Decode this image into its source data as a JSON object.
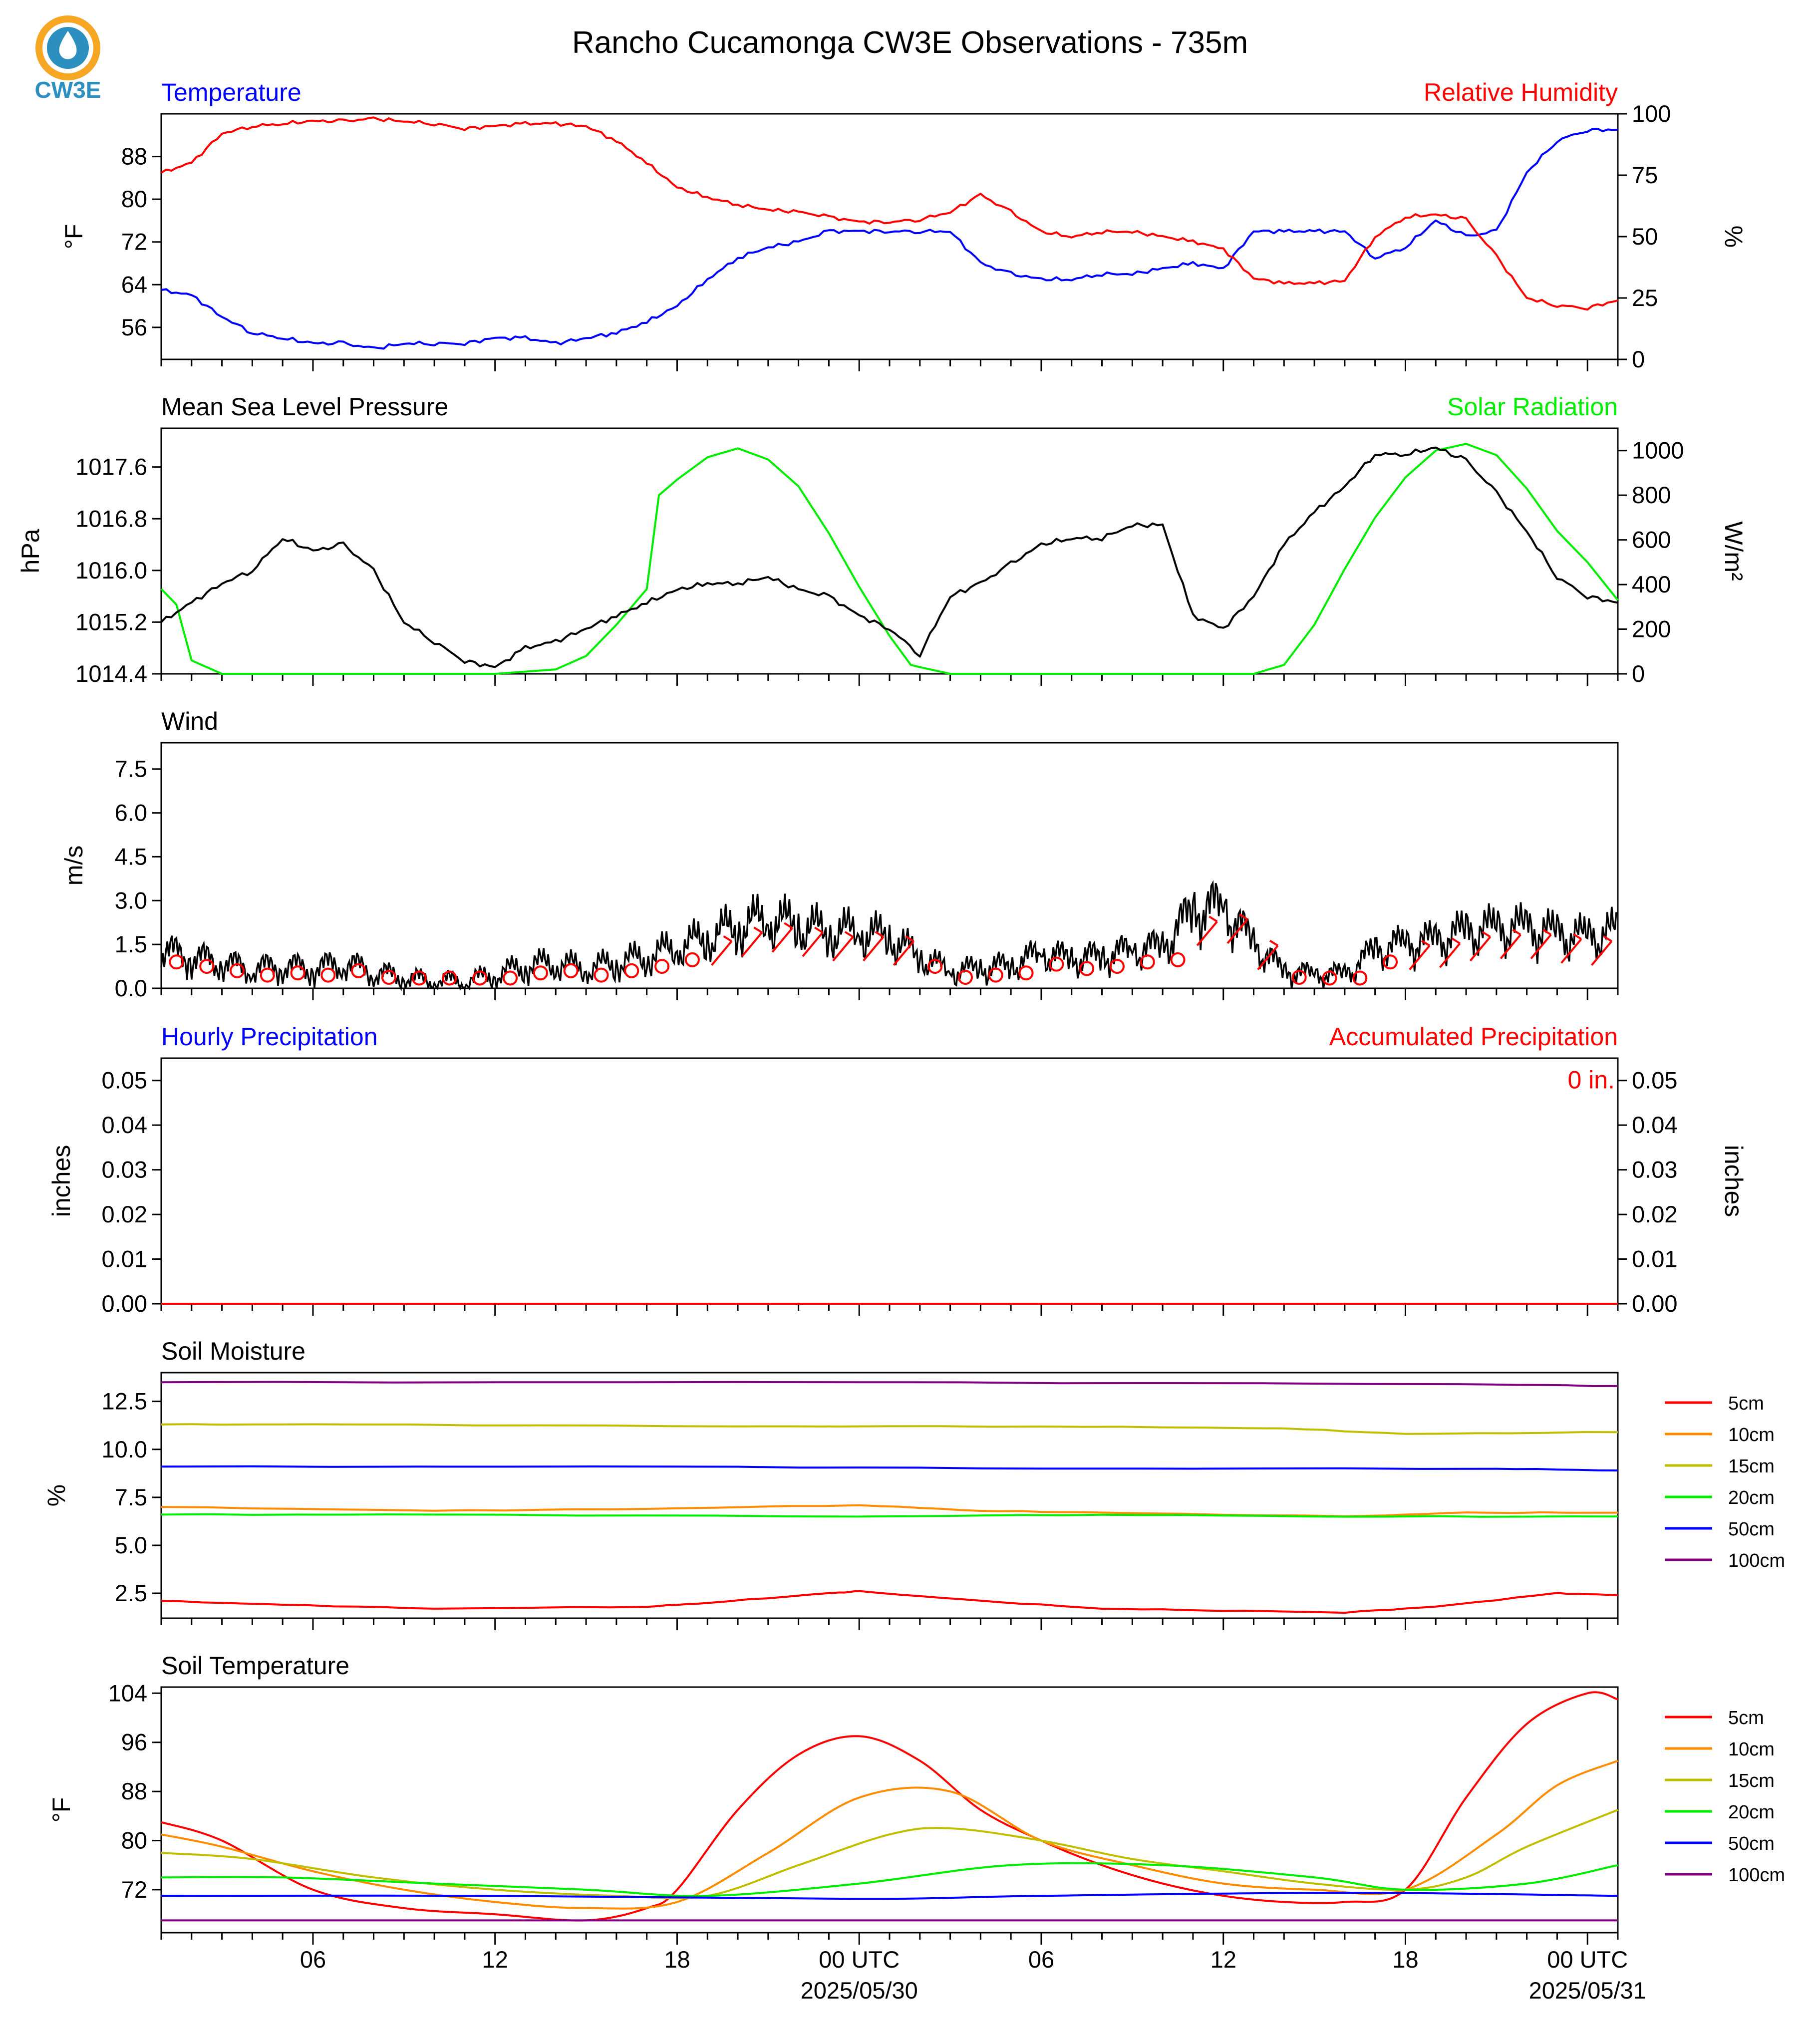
{
  "title": "Rancho Cucamonga CW3E Observations - 735m",
  "logo": {
    "text": "CW3E",
    "colors": {
      "ring": "#f5a623",
      "drop": "#2c8fbf",
      "text": "#2c8fbf"
    }
  },
  "time_axis": {
    "ticks": [
      {
        "t": 6,
        "label": "06"
      },
      {
        "t": 12,
        "label": "12"
      },
      {
        "t": 18,
        "label": "18"
      },
      {
        "t": 24,
        "label": "00 UTC",
        "date": "2025/05/30"
      },
      {
        "t": 30,
        "label": "06"
      },
      {
        "t": 36,
        "label": "12"
      },
      {
        "t": 42,
        "label": "18"
      },
      {
        "t": 48,
        "label": "00 UTC",
        "date": "2025/05/31"
      }
    ],
    "range_hours": [
      1,
      49
    ]
  },
  "panels": {
    "temp_rh": {
      "left_title": "Temperature",
      "right_title": "Relative Humidity",
      "left_ylabel": "°F",
      "right_ylabel": "%",
      "left_ticks": [
        "56",
        "64",
        "72",
        "80",
        "88"
      ],
      "right_ticks": [
        "0",
        "25",
        "50",
        "75",
        "100"
      ],
      "colors": {
        "left": "#0000ff",
        "right": "#ff0000"
      }
    },
    "pressure_solar": {
      "left_title": "Mean Sea Level Pressure",
      "right_title": "Solar Radiation",
      "left_ylabel": "hPa",
      "right_ylabel": "W/m²",
      "left_ticks": [
        "1014.4",
        "1015.2",
        "1016.0",
        "1016.8",
        "1017.6"
      ],
      "right_ticks": [
        "0",
        "200",
        "400",
        "600",
        "800",
        "1000"
      ],
      "colors": {
        "left": "#000000",
        "right": "#00ee00"
      }
    },
    "wind": {
      "left_title": "Wind",
      "left_ylabel": "m/s",
      "left_ticks": [
        "0.0",
        "1.5",
        "3.0",
        "4.5",
        "6.0",
        "7.5"
      ],
      "colors": {
        "speed": "#000000",
        "barbs": "#ff0000"
      }
    },
    "precip": {
      "left_title": "Hourly Precipitation",
      "right_title": "Accumulated Precipitation",
      "left_ylabel": "inches",
      "right_ylabel": "inches",
      "left_ticks": [
        "0.00",
        "0.01",
        "0.02",
        "0.03",
        "0.04",
        "0.05"
      ],
      "right_ticks": [
        "0.00",
        "0.01",
        "0.02",
        "0.03",
        "0.04",
        "0.05"
      ],
      "accum_label": "0 in.",
      "colors": {
        "left": "#0000ff",
        "right": "#ff0000"
      }
    },
    "soil_moisture": {
      "left_title": "Soil Moisture",
      "left_ylabel": "%",
      "left_ticks": [
        "2.5",
        "5.0",
        "7.5",
        "10.0",
        "12.5"
      ]
    },
    "soil_temp": {
      "left_title": "Soil Temperature",
      "left_ylabel": "°F",
      "left_ticks": [
        "72",
        "80",
        "88",
        "96",
        "104"
      ]
    }
  },
  "legend_depths": [
    {
      "label": "5cm",
      "color": "#ff0000"
    },
    {
      "label": "10cm",
      "color": "#ff8c00"
    },
    {
      "label": "15cm",
      "color": "#bfbf00"
    },
    {
      "label": "20cm",
      "color": "#00ee00"
    },
    {
      "label": "50cm",
      "color": "#0000ff"
    },
    {
      "label": "100cm",
      "color": "#800080"
    }
  ],
  "chart_data": [
    {
      "type": "line",
      "title": "Temperature / Relative Humidity",
      "x_unit": "hours since 2025/05/29 00 UTC",
      "series": [
        {
          "name": "Temperature",
          "unit": "°F",
          "axis": "left",
          "ylim": [
            50,
            96
          ],
          "x": [
            1,
            2,
            3,
            4,
            5,
            6,
            7,
            8,
            9,
            10,
            11,
            12,
            13,
            14,
            15,
            16,
            17,
            18,
            19,
            20,
            21,
            22,
            23,
            24,
            25,
            26,
            27,
            28,
            29,
            30,
            31,
            32,
            33,
            34,
            35,
            36,
            37,
            38,
            39,
            40,
            41,
            42,
            43,
            44,
            45,
            46,
            47,
            48,
            49
          ],
          "y": [
            63,
            62,
            58,
            55,
            54,
            53,
            53,
            52,
            53,
            53,
            53,
            54,
            54,
            53,
            54,
            55,
            57,
            60,
            65,
            69,
            71,
            72,
            74,
            74,
            74,
            74,
            74,
            68,
            66,
            65,
            65,
            66,
            66,
            67,
            68,
            67,
            74,
            74,
            74,
            74,
            69,
            71,
            76,
            73,
            74,
            85,
            91,
            93,
            93
          ]
        },
        {
          "name": "Relative Humidity",
          "unit": "%",
          "axis": "right",
          "ylim": [
            0,
            100
          ],
          "x": [
            1,
            2,
            3,
            4,
            5,
            6,
            7,
            8,
            9,
            10,
            11,
            12,
            13,
            14,
            15,
            16,
            17,
            18,
            19,
            20,
            21,
            22,
            23,
            24,
            25,
            26,
            27,
            28,
            29,
            30,
            31,
            32,
            33,
            34,
            35,
            36,
            37,
            38,
            39,
            40,
            41,
            42,
            43,
            44,
            45,
            46,
            47,
            48,
            49
          ],
          "y": [
            76,
            80,
            92,
            95,
            96,
            97,
            97,
            98,
            97,
            96,
            94,
            95,
            96,
            96,
            95,
            89,
            80,
            70,
            66,
            63,
            61,
            60,
            58,
            56,
            56,
            57,
            60,
            67,
            60,
            52,
            50,
            52,
            52,
            50,
            48,
            45,
            33,
            31,
            31,
            32,
            50,
            58,
            59,
            57,
            42,
            25,
            22,
            21,
            24
          ]
        }
      ]
    },
    {
      "type": "line",
      "title": "Mean Sea Level Pressure / Solar Radiation",
      "series": [
        {
          "name": "Mean Sea Level Pressure",
          "unit": "hPa",
          "axis": "left",
          "ylim": [
            1014.4,
            1018.2
          ],
          "x": [
            1,
            2,
            3,
            4,
            5,
            6,
            7,
            8,
            9,
            10,
            11,
            12,
            13,
            14,
            15,
            16,
            17,
            18,
            19,
            20,
            21,
            22,
            23,
            24,
            25,
            26,
            27,
            28,
            29,
            30,
            31,
            32,
            33,
            34,
            35,
            36,
            37,
            38,
            39,
            40,
            41,
            42,
            43,
            44,
            45,
            46,
            47,
            48,
            49
          ],
          "y": [
            1015.2,
            1015.5,
            1015.8,
            1016.0,
            1016.5,
            1016.3,
            1016.4,
            1016.0,
            1015.2,
            1014.9,
            1014.6,
            1014.5,
            1014.8,
            1014.9,
            1015.1,
            1015.3,
            1015.5,
            1015.7,
            1015.8,
            1015.8,
            1015.9,
            1015.7,
            1015.6,
            1015.3,
            1015.1,
            1014.7,
            1015.6,
            1015.8,
            1016.1,
            1016.4,
            1016.5,
            1016.5,
            1016.7,
            1016.7,
            1015.3,
            1015.1,
            1015.6,
            1016.4,
            1016.9,
            1017.3,
            1017.8,
            1017.8,
            1017.9,
            1017.7,
            1017.2,
            1016.6,
            1015.9,
            1015.6,
            1015.5
          ]
        },
        {
          "name": "Solar Radiation",
          "unit": "W/m²",
          "axis": "right",
          "ylim": [
            0,
            1100
          ],
          "x": [
            1,
            1.5,
            2,
            3,
            12,
            14,
            15,
            16,
            17,
            17.4,
            18,
            19,
            20,
            21,
            22,
            23,
            24,
            25,
            25.7,
            26,
            27,
            37,
            38,
            39,
            40,
            41,
            42,
            43,
            44,
            45,
            46,
            47,
            48,
            49
          ],
          "y": [
            380,
            310,
            60,
            0,
            0,
            20,
            80,
            220,
            380,
            800,
            870,
            970,
            1010,
            960,
            840,
            630,
            390,
            170,
            40,
            30,
            0,
            0,
            40,
            220,
            470,
            700,
            880,
            1000,
            1030,
            980,
            830,
            640,
            500,
            330
          ]
        }
      ]
    },
    {
      "type": "line",
      "title": "Wind",
      "series": [
        {
          "name": "Wind speed",
          "unit": "m/s",
          "ylim": [
            0,
            8.4
          ],
          "x": [
            1,
            2,
            3,
            4,
            5,
            6,
            7,
            8,
            9,
            10,
            11,
            12,
            13,
            14,
            15,
            16,
            17,
            18,
            19,
            20,
            21,
            22,
            23,
            24,
            25,
            26,
            27,
            28,
            29,
            30,
            31,
            32,
            33,
            34,
            35,
            36,
            37,
            38,
            39,
            40,
            41,
            42,
            43,
            44,
            45,
            46,
            47,
            48,
            49
          ],
          "y": [
            1.2,
            1.0,
            0.8,
            0.6,
            0.7,
            0.6,
            0.8,
            0.5,
            0.3,
            0.2,
            0.2,
            0.4,
            0.7,
            0.8,
            0.6,
            0.8,
            1.0,
            1.3,
            1.6,
            2.0,
            2.2,
            2.0,
            1.8,
            1.8,
            1.6,
            1.0,
            0.5,
            0.6,
            0.7,
            1.1,
            0.9,
            1.0,
            1.2,
            1.3,
            2.5,
            2.6,
            1.4,
            0.5,
            0.4,
            0.4,
            1.2,
            1.4,
            1.5,
            1.8,
            1.9,
            1.9,
            1.7,
            1.6,
            1.8
          ]
        }
      ]
    },
    {
      "type": "line",
      "title": "Hourly / Accumulated Precipitation",
      "series": [
        {
          "name": "Hourly Precipitation",
          "unit": "inches",
          "x": [
            1,
            49
          ],
          "y": [
            0.0,
            0.0
          ]
        },
        {
          "name": "Accumulated Precipitation",
          "unit": "inches",
          "x": [
            1,
            49
          ],
          "y": [
            0.0,
            0.0
          ]
        }
      ],
      "ylim": [
        0,
        0.055
      ]
    },
    {
      "type": "line",
      "title": "Soil Moisture",
      "ylim": [
        1.2,
        14.0
      ],
      "unit": "%",
      "series": [
        {
          "name": "5cm",
          "x": [
            1,
            5,
            10,
            17,
            19,
            23,
            24,
            28,
            32,
            36,
            40,
            43,
            47,
            49
          ],
          "y": [
            2.1,
            1.9,
            1.7,
            1.8,
            2.0,
            2.5,
            2.6,
            2.1,
            1.7,
            1.6,
            1.5,
            1.8,
            2.5,
            2.4
          ]
        },
        {
          "name": "10cm",
          "x": [
            1,
            10,
            17,
            24,
            28,
            32,
            40,
            44,
            49
          ],
          "y": [
            7.0,
            6.8,
            6.9,
            7.1,
            6.8,
            6.7,
            6.5,
            6.7,
            6.7
          ]
        },
        {
          "name": "15cm",
          "x": [
            1,
            7,
            20,
            30,
            38,
            42,
            49
          ],
          "y": [
            11.3,
            11.3,
            11.2,
            11.2,
            11.1,
            10.8,
            10.9
          ]
        },
        {
          "name": "20cm",
          "x": [
            1,
            10,
            24,
            32,
            40,
            49
          ],
          "y": [
            6.6,
            6.6,
            6.5,
            6.6,
            6.5,
            6.5
          ]
        },
        {
          "name": "50cm",
          "x": [
            1,
            18,
            30,
            45,
            49
          ],
          "y": [
            9.1,
            9.1,
            9.0,
            9.0,
            8.9
          ]
        },
        {
          "name": "100cm",
          "x": [
            1,
            24,
            44,
            49
          ],
          "y": [
            13.5,
            13.5,
            13.4,
            13.3
          ]
        }
      ]
    },
    {
      "type": "line",
      "title": "Soil Temperature",
      "ylim": [
        65,
        105
      ],
      "unit": "°F",
      "series": [
        {
          "name": "5cm",
          "x": [
            1,
            3,
            6,
            9,
            12,
            15,
            17,
            18,
            20,
            22,
            24,
            26,
            28,
            30,
            32,
            34,
            36,
            38,
            40,
            42,
            44,
            46,
            48,
            49
          ],
          "y": [
            83,
            80,
            72,
            69,
            68,
            67,
            69,
            72,
            85,
            94,
            97,
            93,
            85,
            80,
            76,
            73,
            71,
            70,
            70,
            72,
            87,
            99,
            104,
            103
          ]
        },
        {
          "name": "10cm",
          "x": [
            1,
            3,
            6,
            9,
            12,
            15,
            18,
            21,
            24,
            27,
            30,
            33,
            36,
            39,
            42,
            45,
            47,
            49
          ],
          "y": [
            81,
            79,
            75,
            72,
            70,
            69,
            70,
            78,
            87,
            88,
            80,
            76,
            73,
            72,
            72,
            81,
            89,
            93
          ]
        },
        {
          "name": "15cm",
          "x": [
            1,
            4,
            8,
            12,
            16,
            19,
            22,
            25,
            27,
            30,
            33,
            36,
            39,
            42,
            44,
            46,
            49
          ],
          "y": [
            78,
            77,
            74,
            72,
            71,
            71,
            76,
            81,
            82,
            80,
            77,
            75,
            73,
            72,
            74,
            79,
            85
          ]
        },
        {
          "name": "20cm",
          "x": [
            1,
            5,
            10,
            15,
            19,
            24,
            29,
            34,
            39,
            42,
            46,
            49
          ],
          "y": [
            74,
            74,
            73,
            72,
            71,
            73,
            76,
            76,
            74,
            72,
            73,
            76
          ]
        },
        {
          "name": "50cm",
          "x": [
            1,
            12,
            24,
            30,
            40,
            49
          ],
          "y": [
            71,
            71,
            70.5,
            71,
            71.5,
            71
          ]
        },
        {
          "name": "100cm",
          "x": [
            1,
            49
          ],
          "y": [
            67,
            67
          ]
        }
      ]
    }
  ]
}
